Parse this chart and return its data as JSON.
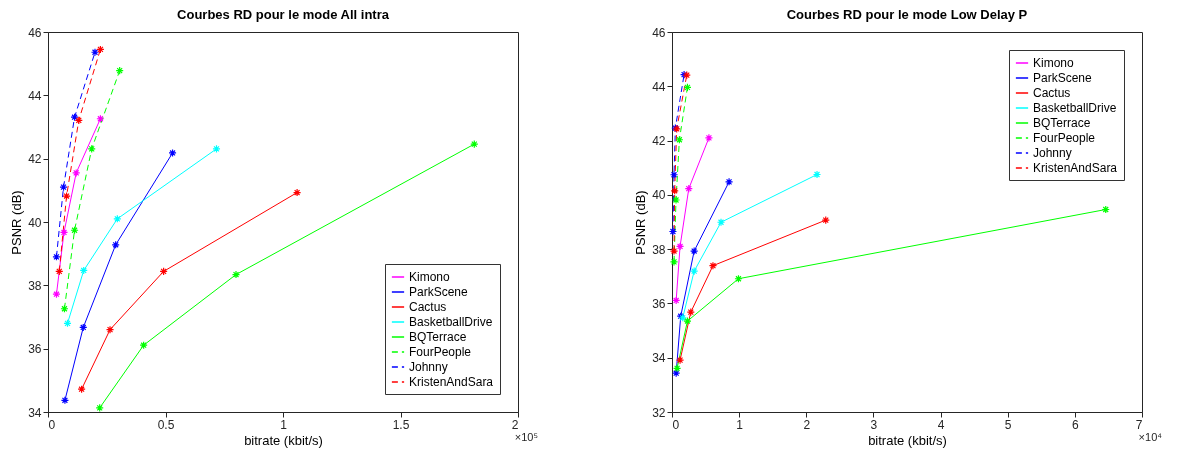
{
  "chart_data": [
    {
      "type": "line",
      "title": "Courbes RD pour le mode All intra",
      "xlabel": "bitrate (kbit/s)",
      "ylabel": "PSNR (dB)",
      "xlim": [
        0,
        2
      ],
      "xticks": [
        0,
        0.5,
        1,
        1.5,
        2
      ],
      "ylim": [
        34,
        46
      ],
      "yticks": [
        34,
        36,
        38,
        40,
        42,
        44,
        46
      ],
      "grid": false,
      "legend": "bottom right",
      "marker": "cross",
      "annotations": [
        "×10⁵"
      ],
      "series": [
        {
          "name": "Kimono",
          "color": "#ff00ff",
          "line_style": "solid",
          "x": [
            0.036,
            0.068,
            0.12,
            0.223
          ],
          "values": [
            37.72,
            39.67,
            41.55,
            43.26
          ]
        },
        {
          "name": "ParkScene",
          "color": "#0000ff",
          "line_style": "solid",
          "x": [
            0.072,
            0.15,
            0.288,
            0.53
          ],
          "values": [
            34.37,
            36.67,
            39.28,
            42.18
          ]
        },
        {
          "name": "Cactus",
          "color": "#ff0000",
          "line_style": "solid",
          "x": [
            0.143,
            0.264,
            0.492,
            1.06
          ],
          "values": [
            34.72,
            36.6,
            38.44,
            40.93
          ]
        },
        {
          "name": "BasketballDrive",
          "color": "#00ffff",
          "line_style": "solid",
          "x": [
            0.083,
            0.152,
            0.295,
            0.717
          ],
          "values": [
            36.8,
            38.47,
            40.1,
            42.31
          ]
        },
        {
          "name": "BQTerrace",
          "color": "#00ff00",
          "line_style": "solid",
          "x": [
            0.22,
            0.407,
            0.8,
            1.814
          ],
          "values": [
            34.13,
            36.11,
            38.34,
            42.46
          ]
        },
        {
          "name": "FourPeople",
          "color": "#00ff00",
          "line_style": "dashed",
          "x": [
            0.07,
            0.113,
            0.186,
            0.305
          ],
          "values": [
            37.26,
            39.74,
            42.31,
            44.78
          ]
        },
        {
          "name": "Johnny",
          "color": "#0000ff",
          "line_style": "dashed",
          "x": [
            0.036,
            0.066,
            0.113,
            0.2
          ],
          "values": [
            38.9,
            41.1,
            43.31,
            45.36
          ]
        },
        {
          "name": "KristenAndSara",
          "color": "#ff0000",
          "line_style": "dashed",
          "x": [
            0.048,
            0.079,
            0.131,
            0.223
          ],
          "values": [
            38.44,
            40.82,
            43.21,
            45.45
          ]
        }
      ]
    },
    {
      "type": "line",
      "title": "Courbes RD pour le mode Low Delay P",
      "xlabel": "bitrate (kbit/s)",
      "ylabel": "PSNR (dB)",
      "xlim": [
        0,
        7
      ],
      "xticks": [
        0,
        1,
        2,
        3,
        4,
        5,
        6,
        7
      ],
      "ylim": [
        32,
        46
      ],
      "yticks": [
        32,
        34,
        36,
        38,
        40,
        42,
        44,
        46
      ],
      "grid": false,
      "legend": "top right",
      "marker": "cross",
      "annotations": [
        "×10⁴"
      ],
      "series": [
        {
          "name": "Kimono",
          "color": "#ff00ff",
          "line_style": "solid",
          "x": [
            0.062,
            0.12,
            0.25,
            0.55
          ],
          "values": [
            36.11,
            38.1,
            40.23,
            42.1
          ]
        },
        {
          "name": "ParkScene",
          "color": "#0000ff",
          "line_style": "solid",
          "x": [
            0.062,
            0.13,
            0.33,
            0.85
          ],
          "values": [
            33.43,
            35.53,
            37.93,
            40.48
          ]
        },
        {
          "name": "Cactus",
          "color": "#ff0000",
          "line_style": "solid",
          "x": [
            0.12,
            0.28,
            0.61,
            2.29
          ],
          "values": [
            33.91,
            35.68,
            37.39,
            39.07
          ]
        },
        {
          "name": "BasketballDrive",
          "color": "#00ffff",
          "line_style": "solid",
          "x": [
            0.16,
            0.33,
            0.73,
            2.16
          ],
          "values": [
            35.47,
            37.19,
            38.99,
            40.75
          ]
        },
        {
          "name": "BQTerrace",
          "color": "#00ff00",
          "line_style": "solid",
          "x": [
            0.076,
            0.23,
            0.99,
            6.46
          ],
          "values": [
            33.61,
            35.35,
            36.91,
            39.46
          ]
        },
        {
          "name": "FourPeople",
          "color": "#00ff00",
          "line_style": "dashed",
          "x": [
            0.03,
            0.06,
            0.11,
            0.23
          ],
          "values": [
            37.53,
            39.81,
            42.03,
            43.96
          ]
        },
        {
          "name": "Johnny",
          "color": "#0000ff",
          "line_style": "dashed",
          "x": [
            0.014,
            0.03,
            0.05,
            0.18
          ],
          "values": [
            38.65,
            40.74,
            42.46,
            44.43
          ]
        },
        {
          "name": "KristenAndSara",
          "color": "#ff0000",
          "line_style": "dashed",
          "x": [
            0.03,
            0.04,
            0.07,
            0.22
          ],
          "values": [
            37.93,
            40.15,
            42.43,
            44.41
          ]
        }
      ]
    }
  ]
}
